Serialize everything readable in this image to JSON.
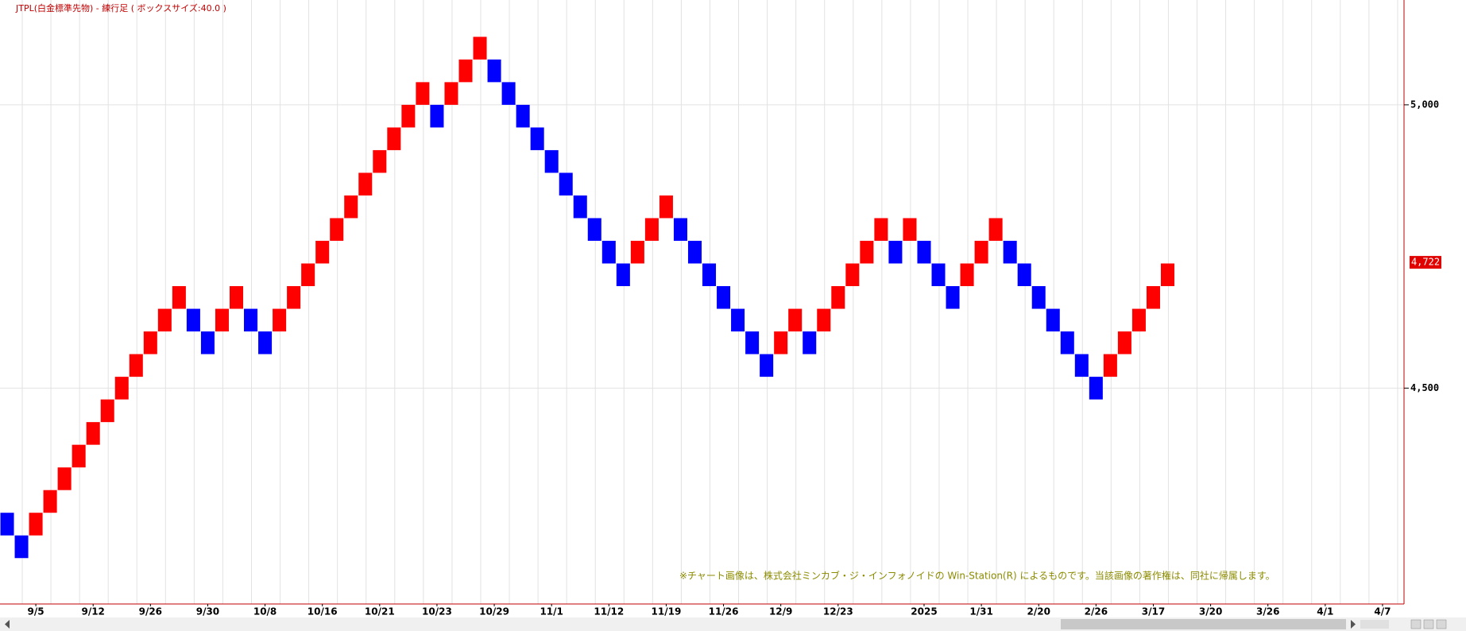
{
  "chart_data": {
    "type": "renko",
    "title": "JTPL(白金標準先物) - 練行足 ( ボックスサイズ:40.0 )",
    "up_color": "#ff0000",
    "down_color": "#0000ff",
    "open": [
      4280,
      4240,
      4240,
      4280,
      4320,
      4360,
      4400,
      4440,
      4480,
      4520,
      4560,
      4600,
      4640,
      4640,
      4600,
      4600,
      4640,
      4640,
      4600,
      4600,
      4640,
      4680,
      4720,
      4760,
      4800,
      4840,
      4880,
      4920,
      4960,
      5000,
      5000,
      5000,
      5040,
      5080,
      5080,
      5040,
      5000,
      4960,
      4920,
      4880,
      4840,
      4800,
      4760,
      4720,
      4720,
      4760,
      4800,
      4800,
      4760,
      4720,
      4680,
      4640,
      4600,
      4560,
      4560,
      4600,
      4600,
      4600,
      4640,
      4680,
      4720,
      4760,
      4760,
      4760,
      4760,
      4720,
      4680,
      4680,
      4720,
      4760,
      4760,
      4720,
      4680,
      4640,
      4600,
      4560,
      4520,
      4520,
      4560,
      4600,
      4640,
      4680
    ],
    "close": [
      4240,
      4200,
      4280,
      4320,
      4360,
      4400,
      4440,
      4480,
      4520,
      4560,
      4600,
      4640,
      4680,
      4600,
      4560,
      4640,
      4680,
      4600,
      4560,
      4640,
      4680,
      4720,
      4760,
      4800,
      4840,
      4880,
      4920,
      4960,
      5000,
      5040,
      4960,
      5040,
      5080,
      5120,
      5040,
      5000,
      4960,
      4920,
      4880,
      4840,
      4800,
      4760,
      4720,
      4680,
      4760,
      4800,
      4840,
      4760,
      4720,
      4680,
      4640,
      4600,
      4560,
      4520,
      4600,
      4640,
      4560,
      4640,
      4680,
      4720,
      4760,
      4800,
      4720,
      4800,
      4720,
      4680,
      4640,
      4720,
      4760,
      4800,
      4720,
      4680,
      4640,
      4600,
      4560,
      4520,
      4480,
      4560,
      4600,
      4640,
      4680,
      4720
    ],
    "ylim": [
      4119,
      5185
    ],
    "yticks": [
      {
        "value": 4500,
        "label": "4,500"
      },
      {
        "value": 5000,
        "label": "5,000"
      }
    ],
    "xlim": [
      0,
      98
    ],
    "xticks": [
      {
        "value": 2,
        "label": "9/5"
      },
      {
        "value": 6,
        "label": "9/12"
      },
      {
        "value": 10,
        "label": "9/26"
      },
      {
        "value": 14,
        "label": "9/30"
      },
      {
        "value": 18,
        "label": "10/8"
      },
      {
        "value": 22,
        "label": "10/16"
      },
      {
        "value": 26,
        "label": "10/21"
      },
      {
        "value": 30,
        "label": "10/23"
      },
      {
        "value": 34,
        "label": "10/29"
      },
      {
        "value": 38,
        "label": "11/1"
      },
      {
        "value": 42,
        "label": "11/12"
      },
      {
        "value": 46,
        "label": "11/19"
      },
      {
        "value": 50,
        "label": "11/26"
      },
      {
        "value": 54,
        "label": "12/9"
      },
      {
        "value": 58,
        "label": "12/23"
      },
      {
        "value": 64,
        "label": "2025"
      },
      {
        "value": 68,
        "label": "1/31"
      },
      {
        "value": 72,
        "label": "2/20"
      },
      {
        "value": 76,
        "label": "2/26"
      },
      {
        "value": 80,
        "label": "3/17"
      },
      {
        "value": 84,
        "label": "3/20"
      },
      {
        "value": 88,
        "label": "3/26"
      },
      {
        "value": 92,
        "label": "4/1"
      },
      {
        "value": 96,
        "label": "4/7"
      }
    ],
    "last_price": {
      "value": 4722,
      "label": "4,722"
    },
    "grid": true
  },
  "footer_note": "※チャート画像は、株式会社ミンカブ・ジ・インフォノイドの Win-Station(R) によるものです。当該画像の著作権は、同社に帰属します。"
}
